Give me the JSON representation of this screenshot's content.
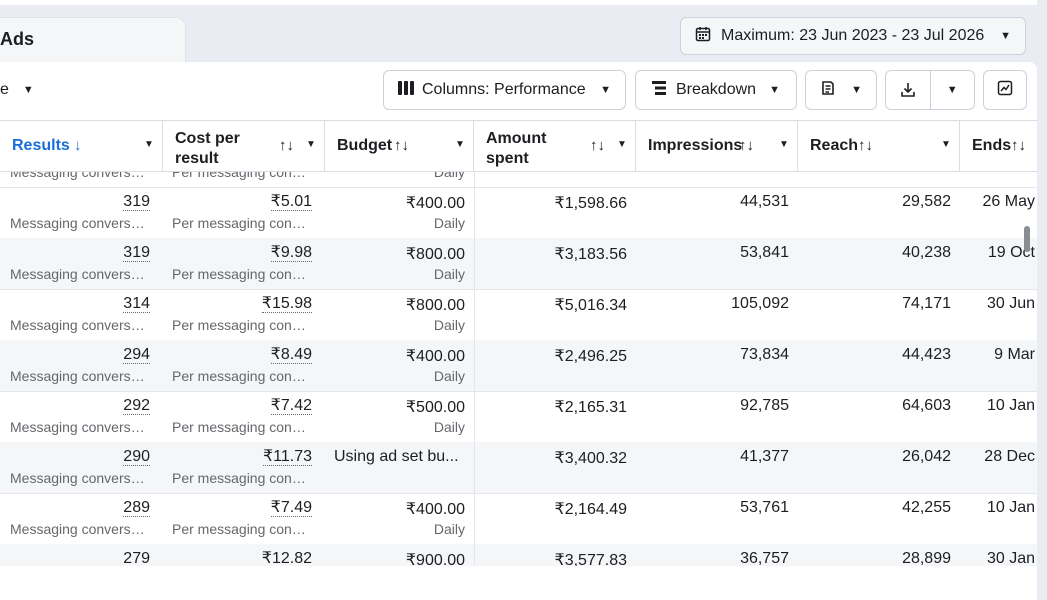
{
  "header": {
    "tab_label": "Ads",
    "date_range": "Maximum: 23 Jun 2023 - 23 Jul 2026"
  },
  "toolbar": {
    "left_label": "e",
    "columns_label": "Columns: Performance",
    "breakdown_label": "Breakdown"
  },
  "table": {
    "columns": [
      {
        "label": "Results",
        "sort": "↓"
      },
      {
        "label": "Cost per result",
        "sort": "↑↓"
      },
      {
        "label": "Budget",
        "sort": "↑↓"
      },
      {
        "label": "Amount spent",
        "sort": "↑↓"
      },
      {
        "label": "Impressions",
        "sort": "↑↓"
      },
      {
        "label": "Reach",
        "sort": "↑↓"
      },
      {
        "label": "Ends",
        "sort": "↑↓"
      }
    ],
    "partial_row": {
      "results_sub": "Messaging conversat...",
      "cpr_sub": "Per messaging conve...",
      "budget_sub": "Daily"
    },
    "rows": [
      {
        "results": "319",
        "results_sub": "Messaging conversat...",
        "cpr": "₹5.01",
        "cpr_sub": "Per messaging conve...",
        "budget": "₹400.00",
        "budget_sub": "Daily",
        "spent": "₹1,598.66",
        "impressions": "44,531",
        "reach": "29,582",
        "ends": "26 May"
      },
      {
        "results": "319",
        "results_sub": "Messaging conversat...",
        "cpr": "₹9.98",
        "cpr_sub": "Per messaging conve...",
        "budget": "₹800.00",
        "budget_sub": "Daily",
        "spent": "₹3,183.56",
        "impressions": "53,841",
        "reach": "40,238",
        "ends": "19 Oct"
      },
      {
        "results": "314",
        "results_sub": "Messaging conversat...",
        "cpr": "₹15.98",
        "cpr_sub": "Per messaging conve...",
        "budget": "₹800.00",
        "budget_sub": "Daily",
        "spent": "₹5,016.34",
        "impressions": "105,092",
        "reach": "74,171",
        "ends": "30 Jun"
      },
      {
        "results": "294",
        "results_sub": "Messaging conversat...",
        "cpr": "₹8.49",
        "cpr_sub": "Per messaging conve...",
        "budget": "₹400.00",
        "budget_sub": "Daily",
        "spent": "₹2,496.25",
        "impressions": "73,834",
        "reach": "44,423",
        "ends": "9 Mar"
      },
      {
        "results": "292",
        "results_sub": "Messaging conversat...",
        "cpr": "₹7.42",
        "cpr_sub": "Per messaging conve...",
        "budget": "₹500.00",
        "budget_sub": "Daily",
        "spent": "₹2,165.31",
        "impressions": "92,785",
        "reach": "64,603",
        "ends": "10 Jan"
      },
      {
        "results": "290",
        "results_sub": "Messaging conversat...",
        "cpr": "₹11.73",
        "cpr_sub": "Per messaging conve...",
        "budget": "Using ad set bu...",
        "budget_sub": "",
        "spent": "₹3,400.32",
        "impressions": "41,377",
        "reach": "26,042",
        "ends": "28 Dec"
      },
      {
        "results": "289",
        "results_sub": "Messaging conversat...",
        "cpr": "₹7.49",
        "cpr_sub": "Per messaging conve...",
        "budget": "₹400.00",
        "budget_sub": "Daily",
        "spent": "₹2,164.49",
        "impressions": "53,761",
        "reach": "42,255",
        "ends": "10 Jan"
      },
      {
        "results": "279",
        "results_sub": "",
        "cpr": "₹12.82",
        "cpr_sub": "",
        "budget": "₹900.00",
        "budget_sub": "",
        "spent": "₹3,577.83",
        "impressions": "36,757",
        "reach": "28,899",
        "ends": "30 Jan"
      }
    ]
  },
  "colors": {
    "accent": "#1a6ed8",
    "background": "#e9edf3",
    "row_alt": "#f5f6f7",
    "border": "#dadde1"
  },
  "icons": [
    "calendar-icon",
    "caret-down-icon",
    "columns-icon",
    "breakdown-icon",
    "reports-icon",
    "download-icon",
    "chart-icon",
    "sort-icon"
  ]
}
